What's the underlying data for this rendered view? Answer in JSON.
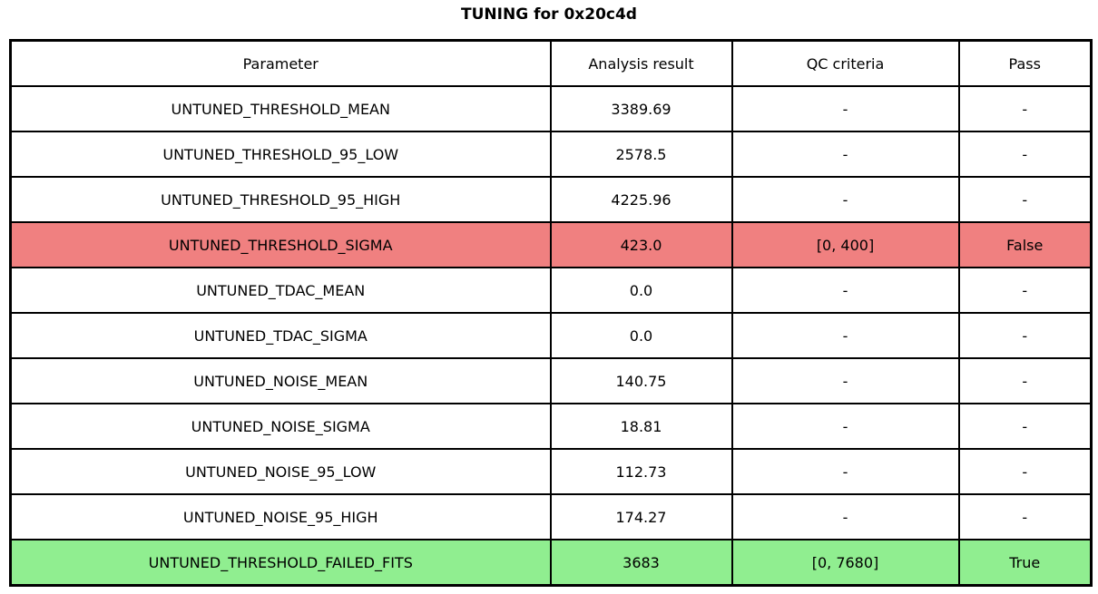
{
  "chart_data": {
    "type": "table",
    "title": "TUNING for 0x20c4d",
    "columns": [
      "Parameter",
      "Analysis result",
      "QC criteria",
      "Pass"
    ],
    "rows": [
      {
        "cells": [
          "UNTUNED_THRESHOLD_MEAN",
          "3389.69",
          "-",
          "-"
        ],
        "highlight": "none"
      },
      {
        "cells": [
          "UNTUNED_THRESHOLD_95_LOW",
          "2578.5",
          "-",
          "-"
        ],
        "highlight": "none"
      },
      {
        "cells": [
          "UNTUNED_THRESHOLD_95_HIGH",
          "4225.96",
          "-",
          "-"
        ],
        "highlight": "none"
      },
      {
        "cells": [
          "UNTUNED_THRESHOLD_SIGMA",
          "423.0",
          "[0, 400]",
          "False"
        ],
        "highlight": "fail"
      },
      {
        "cells": [
          "UNTUNED_TDAC_MEAN",
          "0.0",
          "-",
          "-"
        ],
        "highlight": "none"
      },
      {
        "cells": [
          "UNTUNED_TDAC_SIGMA",
          "0.0",
          "-",
          "-"
        ],
        "highlight": "none"
      },
      {
        "cells": [
          "UNTUNED_NOISE_MEAN",
          "140.75",
          "-",
          "-"
        ],
        "highlight": "none"
      },
      {
        "cells": [
          "UNTUNED_NOISE_SIGMA",
          "18.81",
          "-",
          "-"
        ],
        "highlight": "none"
      },
      {
        "cells": [
          "UNTUNED_NOISE_95_LOW",
          "112.73",
          "-",
          "-"
        ],
        "highlight": "none"
      },
      {
        "cells": [
          "UNTUNED_NOISE_95_HIGH",
          "174.27",
          "-",
          "-"
        ],
        "highlight": "none"
      },
      {
        "cells": [
          "UNTUNED_THRESHOLD_FAILED_FITS",
          "3683",
          "[0, 7680]",
          "True"
        ],
        "highlight": "pass"
      }
    ],
    "highlight_colors": {
      "none": "#FFFFFF",
      "fail": "#F08080",
      "pass": "#90EE90"
    },
    "layout": {
      "grid": true,
      "border_color": "#000000",
      "text_color": "#000000"
    }
  }
}
